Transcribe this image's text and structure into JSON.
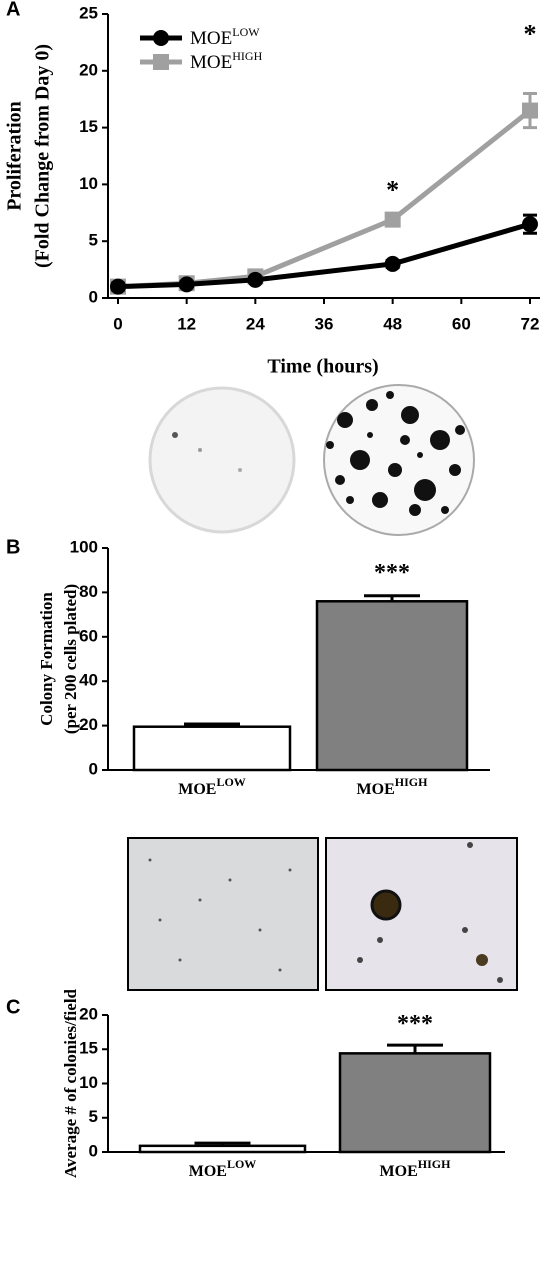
{
  "chart_data": [
    {
      "type": "line",
      "panel": "A",
      "ylabel": [
        "Proliferation",
        "(Fold Change from Day 0)"
      ],
      "xlabel": "Time (hours)",
      "x": [
        0,
        12,
        24,
        48,
        72
      ],
      "xlim": [
        0,
        72
      ],
      "xticks": [
        0,
        12,
        24,
        36,
        48,
        60,
        72
      ],
      "ylim": [
        0,
        25
      ],
      "yticks": [
        0,
        5,
        10,
        15,
        20,
        25
      ],
      "legend": "top-left",
      "series": [
        {
          "name": "MOE",
          "superscript": "LOW",
          "color": "#000000",
          "values": [
            1,
            1.2,
            1.6,
            3,
            6.5
          ],
          "errors": [
            0.3,
            0.2,
            0.2,
            0.3,
            0.8
          ]
        },
        {
          "name": "MOE",
          "superscript": "HIGH",
          "color": "#a0a0a0",
          "values": [
            1,
            1.3,
            1.9,
            6.9,
            16.5
          ],
          "errors": [
            0.5,
            0.3,
            0.3,
            0.4,
            1.5
          ]
        }
      ],
      "annotations": [
        {
          "text": "*",
          "x": 48,
          "y": 9.3
        },
        {
          "text": "*",
          "x": 72,
          "y": 23
        }
      ]
    },
    {
      "type": "bar",
      "panel": "B",
      "ylabel": [
        "Colony Formation",
        "(per 200 cells plated)"
      ],
      "categories": [
        "MOE",
        "MOE"
      ],
      "category_superscripts": [
        "LOW",
        "HIGH"
      ],
      "values": [
        19.5,
        76
      ],
      "errors": [
        1.2,
        2.5
      ],
      "colors": [
        "#ffffff",
        "#808080"
      ],
      "ylim": [
        0,
        100
      ],
      "yticks": [
        0,
        20,
        40,
        60,
        80,
        100
      ],
      "annotations": [
        {
          "text": "***",
          "category": 1,
          "y": 88
        }
      ]
    },
    {
      "type": "bar",
      "panel": "C",
      "ylabel": [
        "Average # of colonies/field"
      ],
      "categories": [
        "MOE",
        "MOE"
      ],
      "category_superscripts": [
        "LOW",
        "HIGH"
      ],
      "values": [
        0.9,
        14.4
      ],
      "errors": [
        0.4,
        1.2
      ],
      "colors": [
        "#ffffff",
        "#808080"
      ],
      "ylim": [
        0,
        20
      ],
      "yticks": [
        0,
        5,
        10,
        15,
        20
      ],
      "annotations": [
        {
          "text": "***",
          "category": 1,
          "y": 18.5
        }
      ]
    }
  ]
}
